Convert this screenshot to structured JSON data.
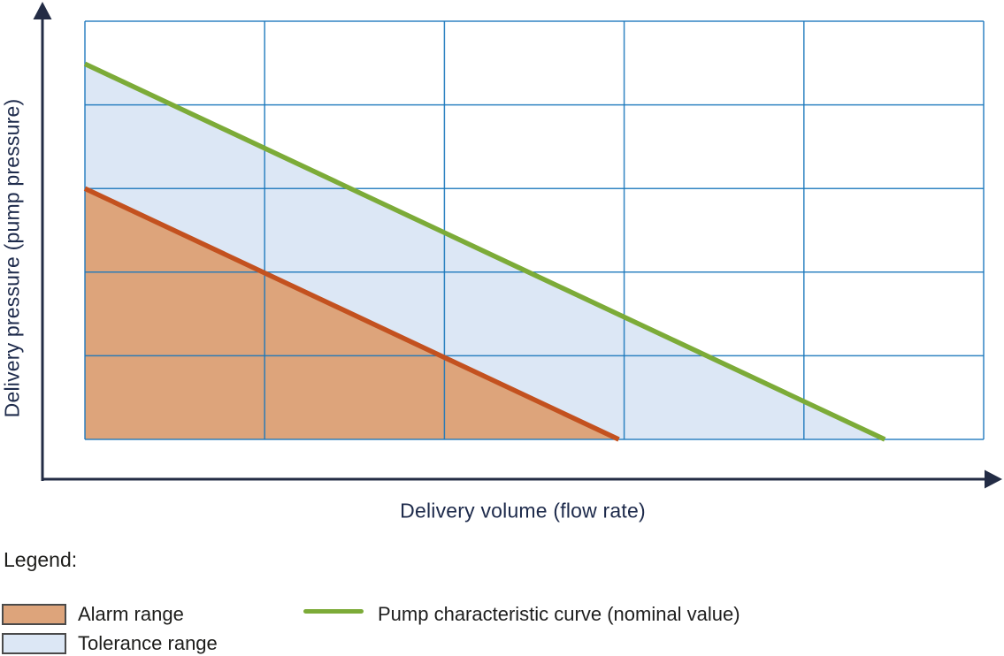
{
  "colors": {
    "axis": "#232c45",
    "grid": "#1a77bb",
    "nominal_curve": "#7cab38",
    "alarm_line": "#c3511f",
    "alarm_fill": "#dda47b",
    "tolerance_fill": "#dce7f5",
    "axis_label_text": "#1d2a4b",
    "legend_text": "#1d1d1b"
  },
  "chart": {
    "x_axis_label": "Delivery volume (flow rate)",
    "y_axis_label": "Delivery pressure (pump pressure)"
  },
  "legend": {
    "title": "Legend:",
    "items": [
      {
        "label": "Alarm range",
        "swatch": "area",
        "color": "#dda47b"
      },
      {
        "label": "Tolerance range",
        "swatch": "area",
        "color": "#dce7f5"
      },
      {
        "label": "Pump characteristic curve (nominal value)",
        "swatch": "line",
        "color": "#7cab38"
      }
    ]
  },
  "chart_data": {
    "type": "area",
    "title": "",
    "xlabel": "Delivery volume (flow rate)",
    "ylabel": "Delivery pressure (pump pressure)",
    "axis_tick_labels": "none (qualitative diagram, axes unnumbered)",
    "grid": true,
    "grid_columns": 5,
    "grid_rows": 5,
    "xlim": [
      0,
      5
    ],
    "ylim": [
      0,
      5
    ],
    "units": "grid units (no numeric scale shown)",
    "series": [
      {
        "name": "Pump characteristic curve (nominal value)",
        "type": "line",
        "color": "#7cab38",
        "points": [
          [
            0,
            4.49
          ],
          [
            4.45,
            0
          ]
        ]
      },
      {
        "name": "Alarm range upper boundary",
        "type": "line",
        "color": "#c3511f",
        "points": [
          [
            0,
            3.0
          ],
          [
            2.97,
            0
          ]
        ]
      }
    ],
    "areas": [
      {
        "name": "Tolerance range",
        "color": "#dce7f5",
        "vertices": [
          [
            0,
            4.49
          ],
          [
            4.45,
            0
          ],
          [
            2.97,
            0
          ],
          [
            0,
            3.0
          ]
        ]
      },
      {
        "name": "Alarm range",
        "color": "#dda47b",
        "vertices": [
          [
            0,
            3.0
          ],
          [
            2.97,
            0
          ],
          [
            0,
            0
          ]
        ]
      }
    ],
    "legend_position": "below chart"
  }
}
